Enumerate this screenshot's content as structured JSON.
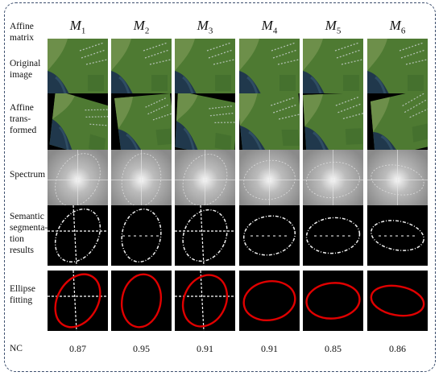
{
  "row_labels": {
    "affine_matrix": "Affine matrix",
    "original_image": "Original image",
    "affine_transformed": "Affine trans-formed",
    "spectrum": "Spectrum",
    "segmentation": "Semantic segmenta-tion results",
    "ellipse_fitting": "Ellipse fitting",
    "nc": "NC"
  },
  "columns": [
    {
      "symbol": "M",
      "sub": "1",
      "nc": "0.87",
      "ellipse_rx": 25,
      "ellipse_ry": 35,
      "ellipse_angle": 30
    },
    {
      "symbol": "M",
      "sub": "2",
      "nc": "0.95",
      "ellipse_rx": 24,
      "ellipse_ry": 33,
      "ellipse_angle": 10
    },
    {
      "symbol": "M",
      "sub": "3",
      "nc": "0.91",
      "ellipse_rx": 26,
      "ellipse_ry": 33,
      "ellipse_angle": 25
    },
    {
      "symbol": "M",
      "sub": "4",
      "nc": "0.91",
      "ellipse_rx": 32,
      "ellipse_ry": 24,
      "ellipse_angle": -10
    },
    {
      "symbol": "M",
      "sub": "5",
      "nc": "0.85",
      "ellipse_rx": 33,
      "ellipse_ry": 22,
      "ellipse_angle": -5
    },
    {
      "symbol": "M",
      "sub": "6",
      "nc": "0.86",
      "ellipse_rx": 33,
      "ellipse_ry": 18,
      "ellipse_angle": 10
    }
  ],
  "colors": {
    "ellipse_fit": "#e00000",
    "frame_border": "#3d4f6e",
    "land": "#4e7a32",
    "water": "#20384c"
  }
}
